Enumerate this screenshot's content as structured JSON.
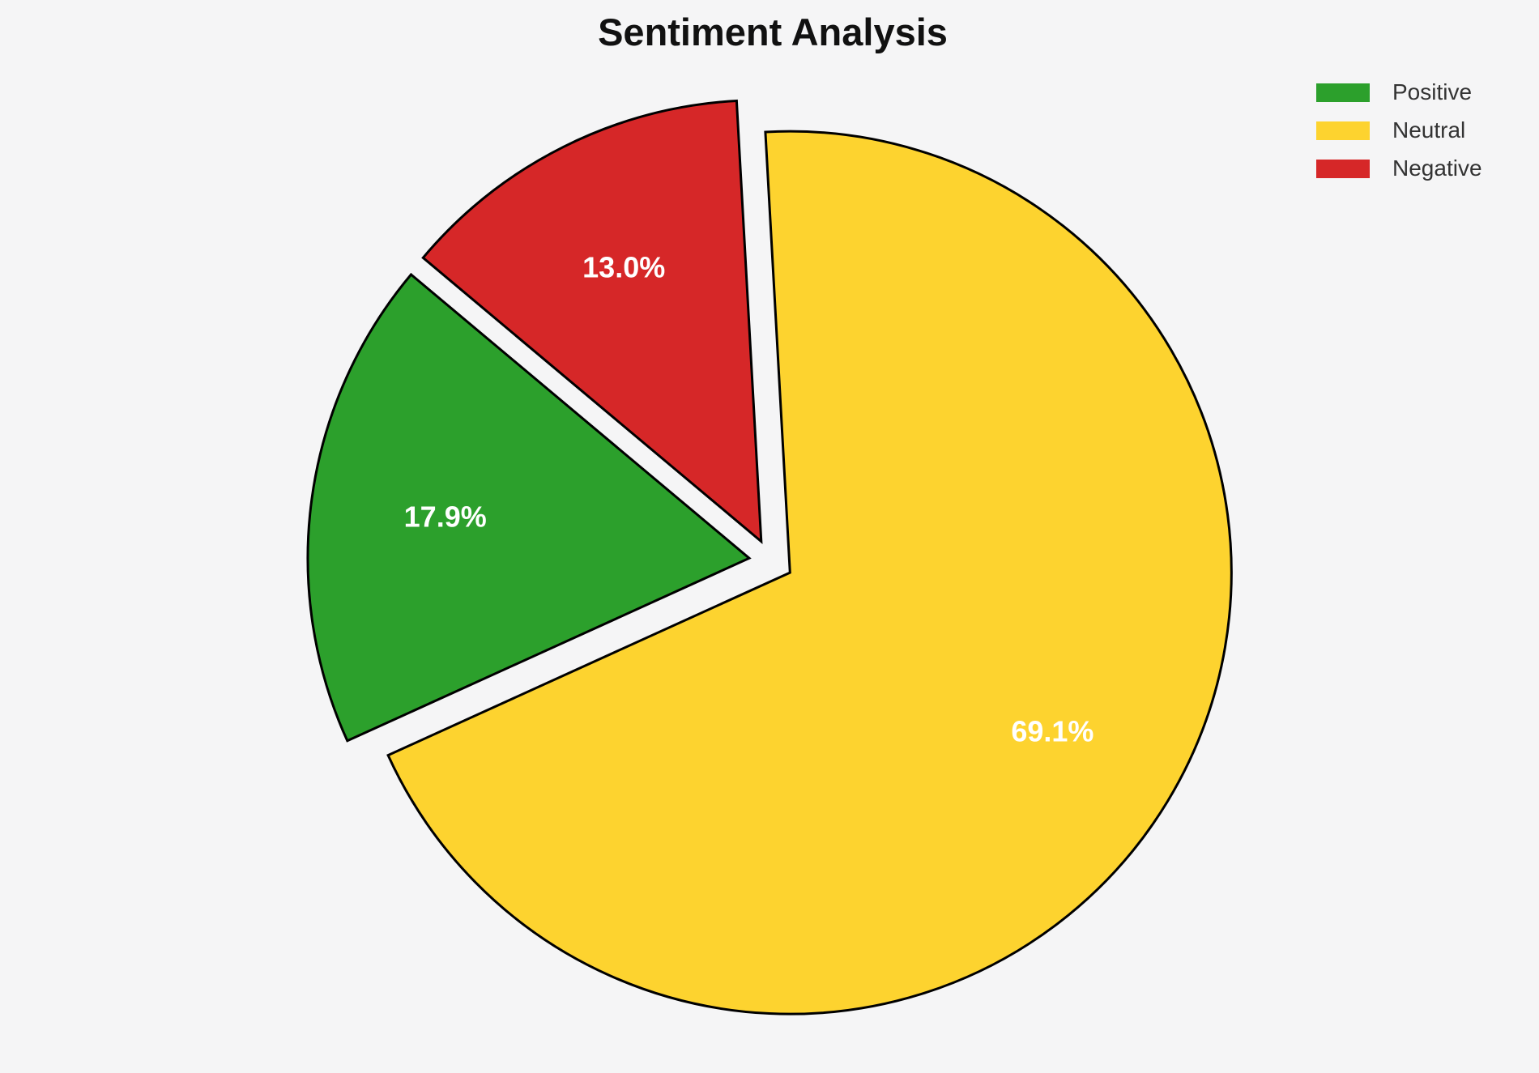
{
  "page": {
    "background_color": "#f5f5f6",
    "title_color": "#111111",
    "legend_text_color": "#333333"
  },
  "chart_data": {
    "type": "pie",
    "title": "Sentiment Analysis",
    "slices": [
      {
        "name": "Positive",
        "value": 17.9,
        "pct_label": "17.9%",
        "color": "#2ca02c"
      },
      {
        "name": "Neutral",
        "value": 69.1,
        "pct_label": "69.1%",
        "color": "#fdd32f"
      },
      {
        "name": "Negative",
        "value": 13.0,
        "pct_label": "13.0%",
        "color": "#d62728"
      }
    ],
    "legend": [
      "Positive",
      "Neutral",
      "Negative"
    ],
    "legend_position": "upper-right",
    "draw_order_ccw": [
      2,
      0,
      1
    ],
    "start_angle_deg": 93.2,
    "explode_fraction": 0.05,
    "pct_label_distance": 0.695,
    "edge_color": "#000000",
    "pct_label_color": "#ffffff"
  }
}
